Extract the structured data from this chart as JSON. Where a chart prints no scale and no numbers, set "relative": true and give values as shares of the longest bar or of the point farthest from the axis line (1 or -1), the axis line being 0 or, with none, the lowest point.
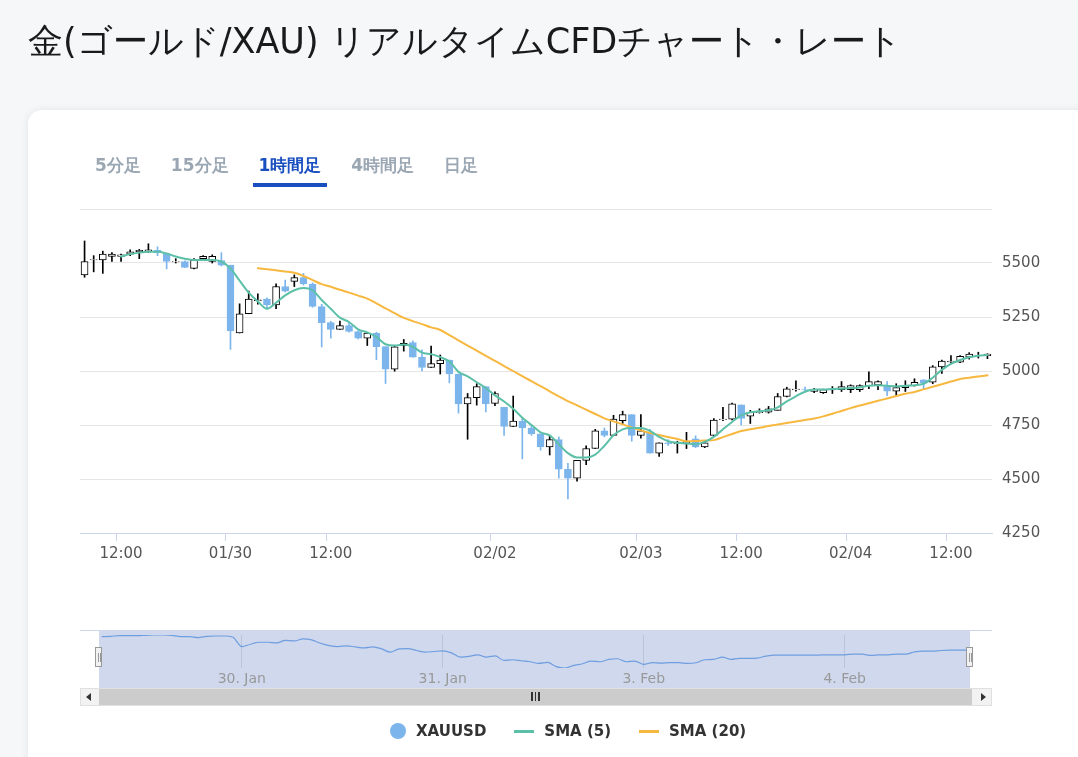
{
  "chart_data": [
    {
      "type": "candlestick",
      "title": "金(ゴールド/XAU) リアルタイムCFDチャート・レート",
      "annotations": [
        "5分足",
        "15分足",
        "1時間足",
        "4時間足",
        "日足"
      ],
      "categories": [
        null,
        null,
        null,
        null,
        "12:00",
        null,
        null,
        null,
        null,
        null,
        null,
        null,
        null,
        null,
        null,
        null,
        "01/30",
        null,
        null,
        null,
        null,
        null,
        null,
        null,
        null,
        null,
        null,
        "12:00",
        null,
        null,
        null,
        null,
        null,
        null,
        null,
        null,
        null,
        null,
        null,
        null,
        null,
        null,
        null,
        null,
        null,
        "02/02",
        null,
        null,
        null,
        null,
        null,
        null,
        null,
        null,
        null,
        null,
        null,
        null,
        null,
        null,
        null,
        "02/03",
        null,
        null,
        null,
        null,
        null,
        null,
        null,
        null,
        null,
        null,
        "12:00",
        null,
        null,
        null,
        null,
        null,
        null,
        null,
        null,
        null,
        null,
        null,
        "02/04",
        null,
        null,
        null,
        null,
        null,
        null,
        null,
        null,
        null,
        null,
        "12:00",
        null,
        null,
        null,
        null
      ],
      "ylim": [
        4250,
        5750
      ],
      "yticks": [
        4250,
        4500,
        4750,
        5000,
        5250,
        5500
      ],
      "grid": "y",
      "legend": "bottom",
      "series": [
        {
          "name": "XAUUSD",
          "type": "candlestick",
          "color": "#7cb5ec",
          "colors": [
            "#000000",
            "#000000",
            "#000000",
            "#000000",
            "#000000",
            "#000000",
            "#000000",
            "#000000",
            "#7cb5ec",
            "#7cb5ec",
            "#000000",
            "#7cb5ec",
            "#000000",
            "#000000",
            "#000000",
            "#7cb5ec",
            "#7cb5ec",
            "#000000",
            "#000000",
            "#000000",
            "#7cb5ec",
            "#000000",
            "#7cb5ec",
            "#000000",
            "#7cb5ec",
            "#7cb5ec",
            "#7cb5ec",
            "#7cb5ec",
            "#000000",
            "#7cb5ec",
            "#7cb5ec",
            "#000000",
            "#7cb5ec",
            "#7cb5ec",
            "#000000",
            "#000000",
            "#7cb5ec",
            "#7cb5ec",
            "#000000",
            "#000000",
            "#7cb5ec",
            "#7cb5ec",
            "#000000",
            "#000000",
            "#7cb5ec",
            "#000000",
            "#7cb5ec",
            "#000000",
            "#7cb5ec",
            "#7cb5ec",
            "#7cb5ec",
            "#000000",
            "#7cb5ec",
            "#7cb5ec",
            "#000000",
            "#000000",
            "#000000",
            "#7cb5ec",
            "#000000",
            "#000000",
            "#7cb5ec",
            "#000000",
            "#7cb5ec",
            "#000000",
            "#7cb5ec",
            "#000000",
            "#000000",
            "#7cb5ec",
            "#000000",
            "#000000",
            "#000000",
            "#000000",
            "#7cb5ec",
            "#000000",
            "#000000",
            "#000000",
            "#000000",
            "#000000",
            "#000000",
            "#7cb5ec",
            "#000000",
            "#000000",
            "#000000",
            "#000000",
            "#000000",
            "#000000",
            "#000000",
            "#000000",
            "#7cb5ec",
            "#000000",
            "#000000",
            "#000000",
            "#7cb5ec",
            "#000000",
            "#000000",
            "#000000",
            "#000000",
            "#000000",
            "#000000",
            "#000000"
          ],
          "ohlc": [
            [
              5445,
              5602,
              5434,
              5507
            ],
            [
              5514,
              5534,
              5459,
              5516
            ],
            [
              5514,
              5555,
              5452,
              5541
            ],
            [
              5530,
              5548,
              5507,
              5541
            ],
            [
              5530,
              5541,
              5507,
              5538
            ],
            [
              5541,
              5561,
              5534,
              5552
            ],
            [
              5552,
              5563,
              5520,
              5559
            ],
            [
              5555,
              5589,
              5548,
              5561
            ],
            [
              5559,
              5575,
              5534,
              5548
            ],
            [
              5541,
              5541,
              5473,
              5507
            ],
            [
              5505,
              5520,
              5500,
              5507
            ],
            [
              5507,
              5510,
              5478,
              5480
            ],
            [
              5475,
              5520,
              5473,
              5514
            ],
            [
              5520,
              5534,
              5514,
              5531
            ],
            [
              5507,
              5538,
              5500,
              5531
            ],
            [
              5511,
              5548,
              5486,
              5490
            ],
            [
              5490,
              5490,
              5100,
              5186
            ],
            [
              5176,
              5311,
              5176,
              5265
            ],
            [
              5265,
              5370,
              5265,
              5333
            ],
            [
              5326,
              5357,
              5309,
              5330
            ],
            [
              5333,
              5339,
              5288,
              5306
            ],
            [
              5306,
              5404,
              5288,
              5391
            ],
            [
              5391,
              5421,
              5366,
              5370
            ],
            [
              5415,
              5445,
              5391,
              5432
            ],
            [
              5432,
              5452,
              5398,
              5404
            ],
            [
              5402,
              5408,
              5295,
              5299
            ],
            [
              5298,
              5309,
              5111,
              5224
            ],
            [
              5224,
              5230,
              5152,
              5193
            ],
            [
              5193,
              5231,
              5193,
              5210
            ],
            [
              5210,
              5224,
              5180,
              5183
            ],
            [
              5183,
              5186,
              5149,
              5152
            ],
            [
              5152,
              5176,
              5118,
              5176
            ],
            [
              5176,
              5180,
              5052,
              5113
            ],
            [
              5113,
              5113,
              4942,
              5008
            ],
            [
              5008,
              5119,
              4999,
              5112
            ],
            [
              5119,
              5146,
              5092,
              5128
            ],
            [
              5132,
              5140,
              5064,
              5064
            ],
            [
              5064,
              5098,
              5000,
              5016
            ],
            [
              5016,
              5115,
              5016,
              5034
            ],
            [
              5034,
              5074,
              4986,
              5051
            ],
            [
              5051,
              5051,
              4945,
              4986
            ],
            [
              4986,
              4986,
              4805,
              4848
            ],
            [
              4848,
              4896,
              4684,
              4877
            ],
            [
              4877,
              4941,
              4842,
              4928
            ],
            [
              4928,
              4928,
              4811,
              4848
            ],
            [
              4850,
              4904,
              4839,
              4896
            ],
            [
              4832,
              4832,
              4702,
              4743
            ],
            [
              4743,
              4884,
              4743,
              4768
            ],
            [
              4768,
              4781,
              4593,
              4736
            ],
            [
              4736,
              4750,
              4702,
              4709
            ],
            [
              4709,
              4709,
              4634,
              4648
            ],
            [
              4648,
              4702,
              4611,
              4682
            ],
            [
              4682,
              4695,
              4504,
              4545
            ],
            [
              4545,
              4572,
              4408,
              4504
            ],
            [
              4504,
              4586,
              4490,
              4586
            ],
            [
              4586,
              4654,
              4566,
              4641
            ],
            [
              4641,
              4730,
              4641,
              4723
            ],
            [
              4723,
              4736,
              4695,
              4702
            ],
            [
              4702,
              4795,
              4702,
              4777
            ],
            [
              4770,
              4814,
              4757,
              4798
            ],
            [
              4798,
              4798,
              4675,
              4702
            ],
            [
              4702,
              4798,
              4689,
              4723
            ],
            [
              4716,
              4730,
              4620,
              4620
            ],
            [
              4620,
              4668,
              4604,
              4668
            ],
            [
              4668,
              4682,
              4655,
              4664
            ],
            [
              4664,
              4675,
              4620,
              4668
            ],
            [
              4664,
              4716,
              4641,
              4672
            ],
            [
              4686,
              4700,
              4645,
              4648
            ],
            [
              4648,
              4675,
              4645,
              4668
            ],
            [
              4702,
              4780,
              4697,
              4773
            ],
            [
              4775,
              4832,
              4770,
              4777
            ],
            [
              4777,
              4852,
              4773,
              4848
            ],
            [
              4843,
              4843,
              4750,
              4781
            ],
            [
              4791,
              4818,
              4757,
              4809
            ],
            [
              4807,
              4825,
              4805,
              4809
            ],
            [
              4809,
              4836,
              4805,
              4825
            ],
            [
              4818,
              4896,
              4818,
              4882
            ],
            [
              4882,
              4925,
              4880,
              4918
            ],
            [
              4914,
              4955,
              4907,
              4916
            ],
            [
              4914,
              4925,
              4905,
              4912
            ],
            [
              4905,
              4920,
              4900,
              4914
            ],
            [
              4900,
              4916,
              4896,
              4914
            ],
            [
              4912,
              4928,
              4896,
              4914
            ],
            [
              4914,
              4951,
              4905,
              4928
            ],
            [
              4914,
              4936,
              4900,
              4932
            ],
            [
              4914,
              4936,
              4905,
              4932
            ],
            [
              4932,
              4996,
              4918,
              4951
            ],
            [
              4936,
              4955,
              4914,
              4951
            ],
            [
              4932,
              4951,
              4886,
              4907
            ],
            [
              4907,
              4941,
              4886,
              4923
            ],
            [
              4923,
              4955,
              4905,
              4932
            ],
            [
              4932,
              4964,
              4930,
              4948
            ],
            [
              4959,
              4960,
              4914,
              4945
            ],
            [
              4948,
              5025,
              4941,
              5019
            ],
            [
              5019,
              5050,
              4989,
              5046
            ],
            [
              5042,
              5071,
              5037,
              5046
            ],
            [
              5041,
              5071,
              5039,
              5068
            ],
            [
              5064,
              5085,
              5055,
              5078
            ],
            [
              5073,
              5087,
              5060,
              5074
            ],
            [
              5071,
              5080,
              5057,
              5078
            ]
          ]
        },
        {
          "name": "SMA (5)",
          "type": "line",
          "color": "#5cc0a8",
          "values": [
            null,
            null,
            null,
            null,
            5530,
            5541,
            5548,
            5552,
            5552,
            5544,
            5530,
            5520,
            5514,
            5514,
            5514,
            5507,
            5475,
            5418,
            5363,
            5322,
            5288,
            5316,
            5350,
            5374,
            5384,
            5374,
            5329,
            5288,
            5247,
            5227,
            5193,
            5179,
            5158,
            5124,
            5118,
            5123,
            5112,
            5085,
            5078,
            5064,
            5044,
            4996,
            4975,
            4948,
            4921,
            4887,
            4859,
            4825,
            4784,
            4750,
            4716,
            4702,
            4661,
            4620,
            4600,
            4600,
            4613,
            4654,
            4702,
            4730,
            4736,
            4736,
            4723,
            4695,
            4675,
            4668,
            4664,
            4661,
            4672,
            4695,
            4730,
            4764,
            4795,
            4809,
            4814,
            4818,
            4832,
            4859,
            4883,
            4904,
            4914,
            4914,
            4917,
            4918,
            4921,
            4924,
            4932,
            4934,
            4932,
            4928,
            4932,
            4934,
            4941,
            4969,
            5005,
            5033,
            5051,
            5064,
            5071,
            5074
          ]
        },
        {
          "name": "SMA (20)",
          "type": "line",
          "color": "#f7b840",
          "values": [
            null,
            null,
            null,
            null,
            null,
            null,
            null,
            null,
            null,
            null,
            null,
            null,
            null,
            null,
            null,
            null,
            null,
            null,
            null,
            5476,
            5471,
            5466,
            5461,
            5455,
            5440,
            5421,
            5402,
            5390,
            5376,
            5363,
            5349,
            5335,
            5313,
            5290,
            5268,
            5246,
            5231,
            5217,
            5202,
            5190,
            5166,
            5142,
            5118,
            5094,
            5070,
            5047,
            5023,
            5000,
            4976,
            4953,
            4930,
            4906,
            4883,
            4861,
            4841,
            4821,
            4801,
            4781,
            4767,
            4753,
            4739,
            4725,
            4713,
            4704,
            4694,
            4685,
            4675,
            4676,
            4678,
            4680,
            4694,
            4708,
            4722,
            4730,
            4737,
            4745,
            4752,
            4759,
            4766,
            4773,
            4780,
            4790,
            4802,
            4815,
            4828,
            4840,
            4851,
            4862,
            4873,
            4884,
            4895,
            4903,
            4915,
            4927,
            4939,
            4951,
            4963,
            4969,
            4975,
            4980
          ]
        }
      ]
    },
    {
      "type": "line",
      "relative": true,
      "grid": "x",
      "tick_labels": "x",
      "categories": [
        null,
        null,
        null,
        null,
        null,
        null,
        null,
        null,
        null,
        null,
        null,
        null,
        null,
        null,
        null,
        null,
        "30. Jan",
        null,
        null,
        null,
        null,
        null,
        null,
        null,
        null,
        null,
        null,
        null,
        null,
        null,
        null,
        null,
        null,
        null,
        null,
        null,
        null,
        null,
        null,
        "31. Jan",
        null,
        null,
        null,
        null,
        null,
        null,
        null,
        null,
        null,
        null,
        null,
        null,
        null,
        null,
        null,
        null,
        null,
        null,
        null,
        null,
        null,
        null,
        "3. Feb",
        null,
        null,
        null,
        null,
        null,
        null,
        null,
        null,
        null,
        null,
        null,
        null,
        null,
        null,
        null,
        null,
        null,
        null,
        null,
        null,
        null,
        null,
        "4. Feb",
        null,
        null,
        null,
        null,
        null,
        null,
        null,
        null,
        null,
        null,
        null,
        null,
        null,
        null
      ],
      "series": [
        {
          "type": "line",
          "color": "#6f9ee0",
          "values": [
            0.95,
            0.96,
            0.98,
            0.98,
            0.98,
            0.99,
            1.0,
            1.0,
            0.99,
            0.95,
            0.95,
            0.92,
            0.96,
            0.97,
            0.97,
            0.93,
            0.65,
            0.72,
            0.78,
            0.78,
            0.76,
            0.84,
            0.82,
            0.88,
            0.85,
            0.75,
            0.68,
            0.65,
            0.67,
            0.64,
            0.61,
            0.64,
            0.58,
            0.48,
            0.58,
            0.59,
            0.53,
            0.48,
            0.5,
            0.52,
            0.46,
            0.33,
            0.35,
            0.4,
            0.33,
            0.37,
            0.23,
            0.25,
            0.22,
            0.19,
            0.14,
            0.17,
            0.04,
            0,
            0.08,
            0.13,
            0.21,
            0.19,
            0.26,
            0.28,
            0.19,
            0.21,
            0.11,
            0.16,
            0.15,
            0.16,
            0.16,
            0.14,
            0.16,
            0.25,
            0.26,
            0.33,
            0.26,
            0.29,
            0.29,
            0.3,
            0.36,
            0.39,
            0.39,
            0.39,
            0.39,
            0.39,
            0.39,
            0.4,
            0.4,
            0.4,
            0.42,
            0.42,
            0.38,
            0.4,
            0.4,
            0.42,
            0.42,
            0.49,
            0.51,
            0.51,
            0.53,
            0.54,
            0.54,
            0.54
          ]
        }
      ]
    }
  ]
}
